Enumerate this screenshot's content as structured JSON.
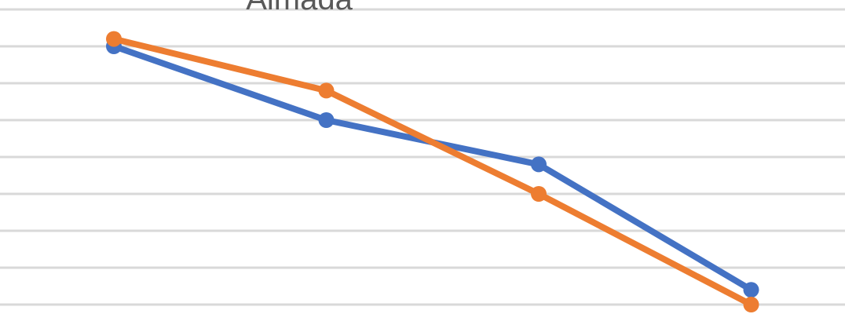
{
  "chart_data": {
    "type": "line",
    "title": "Almada",
    "categories": [
      null,
      null,
      null,
      null
    ],
    "series": [
      {
        "color": "#4472c4",
        "values": [
          7,
          5,
          3.8,
          0.4
        ]
      },
      {
        "color": "#ed7d31",
        "values": [
          7.2,
          5.8,
          3,
          0
        ]
      }
    ],
    "ylim": [
      0,
      8
    ],
    "yticks": [
      0,
      1,
      2,
      3,
      4,
      5,
      6,
      7,
      8
    ],
    "grid": true
  }
}
